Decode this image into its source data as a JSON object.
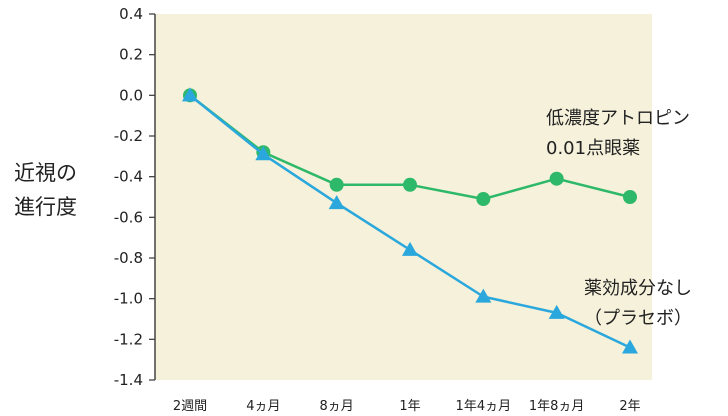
{
  "chart_data": {
    "type": "line",
    "title": "",
    "xlabel": "",
    "ylabel": [
      "近視の",
      "進行度"
    ],
    "categories": [
      "2週間",
      "4ヵ月",
      "8ヵ月",
      "1年",
      "1年4ヵ月",
      "1年8ヵ月",
      "2年"
    ],
    "yticks": [
      "0.4",
      "0.2",
      "0.0",
      "-0.2",
      "-0.4",
      "-0.6",
      "-0.8",
      "-1.0",
      "-1.2",
      "-1.4"
    ],
    "ylim": [
      -1.4,
      0.4
    ],
    "grid": false,
    "background_color": "#f5f1da",
    "series": [
      {
        "name": [
          "低濃度アトロピン",
          "0.01点眼薬"
        ],
        "marker": "circle",
        "color": "#2eb86a",
        "values": [
          0.0,
          -0.28,
          -0.44,
          -0.44,
          -0.51,
          -0.41,
          -0.5
        ]
      },
      {
        "name": [
          "薬効成分なし",
          "（プラセボ）"
        ],
        "marker": "triangle",
        "color": "#2aa7dc",
        "values": [
          0.0,
          -0.29,
          -0.53,
          -0.76,
          -0.99,
          -1.07,
          -1.24
        ]
      }
    ]
  }
}
